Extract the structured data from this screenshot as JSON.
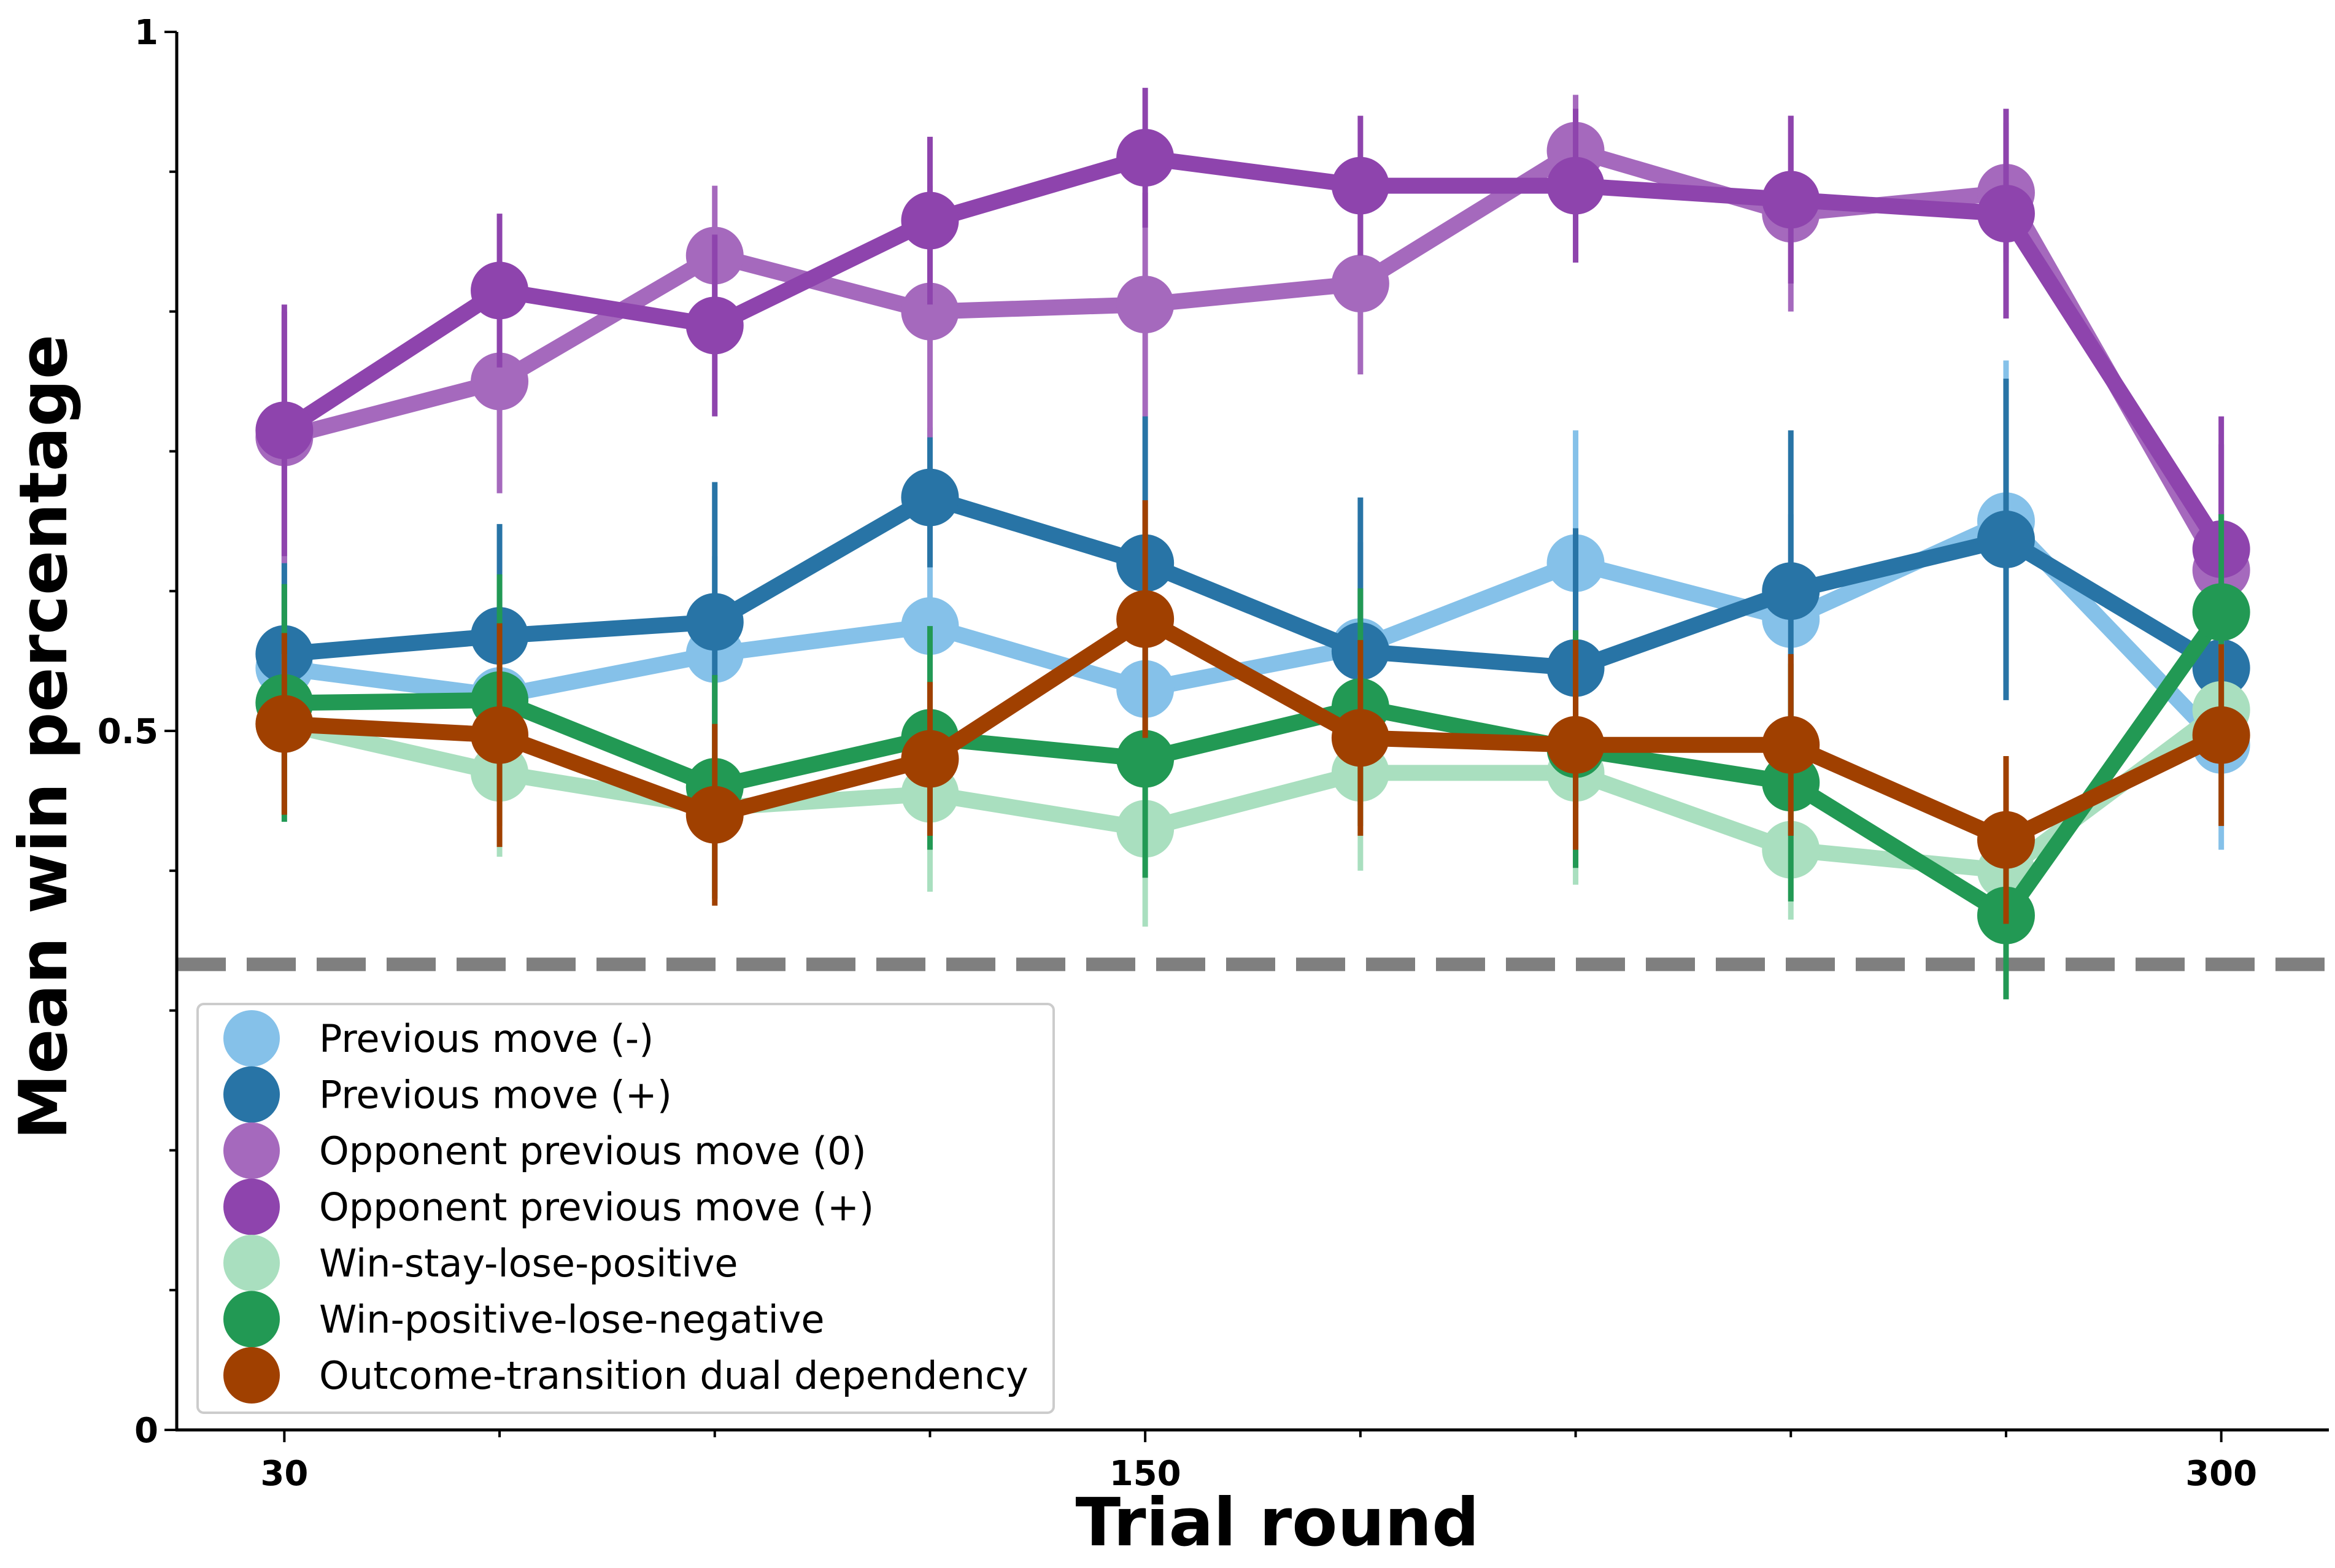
{
  "chart_data": {
    "type": "line",
    "title": "",
    "xlabel": "Trial round",
    "ylabel": "Mean win percentage",
    "x": [
      30,
      60,
      90,
      120,
      150,
      180,
      210,
      240,
      270,
      300
    ],
    "xticks": [
      30,
      60,
      90,
      120,
      150,
      180,
      210,
      240,
      270,
      300
    ],
    "xtick_labels": [
      "30",
      "",
      "",
      "",
      "150",
      "",
      "",
      "",
      "",
      "300"
    ],
    "xlim": [
      15,
      315
    ],
    "ylim": [
      0,
      1
    ],
    "yticks": [
      0,
      0.1,
      0.2,
      0.3,
      0.4,
      0.5,
      0.6,
      0.7,
      0.8,
      0.9,
      1
    ],
    "ytick_labels": [
      "0",
      "",
      "",
      "",
      "",
      "0.5",
      "",
      "",
      "",
      "",
      "1"
    ],
    "reference_line": {
      "y": 0.333,
      "style": "dashed",
      "color": "#7f7f7f"
    },
    "grid": false,
    "legend_position": "lower-left",
    "series": [
      {
        "name": "Previous move (-)",
        "color": "#85c1e9",
        "values": [
          0.545,
          0.525,
          0.555,
          0.575,
          0.53,
          0.56,
          0.62,
          0.58,
          0.65,
          0.49
        ],
        "errors": [
          0.075,
          0.07,
          0.07,
          0.075,
          0.07,
          0.075,
          0.095,
          0.075,
          0.115,
          0.075
        ]
      },
      {
        "name": "Previous move (+)",
        "color": "#2874a6",
        "values": [
          0.555,
          0.568,
          0.578,
          0.667,
          0.62,
          0.557,
          0.545,
          0.6,
          0.637,
          0.545
        ],
        "errors": [
          0.07,
          0.08,
          0.1,
          0.05,
          0.105,
          0.11,
          0.1,
          0.115,
          0.115,
          0.07
        ]
      },
      {
        "name": "Opponent previous move (0)",
        "color": "#a569bd",
        "values": [
          0.71,
          0.75,
          0.84,
          0.8,
          0.805,
          0.82,
          0.915,
          0.87,
          0.885,
          0.615
        ],
        "errors": [
          0.09,
          0.08,
          0.05,
          0.09,
          0.08,
          0.065,
          0.04,
          0.07,
          0.05,
          0.09
        ]
      },
      {
        "name": "Opponent previous move (+)",
        "color": "#8e44ad",
        "values": [
          0.715,
          0.815,
          0.79,
          0.865,
          0.91,
          0.89,
          0.89,
          0.88,
          0.87,
          0.63
        ],
        "errors": [
          0.09,
          0.055,
          0.065,
          0.06,
          0.05,
          0.05,
          0.055,
          0.06,
          0.075,
          0.095
        ]
      },
      {
        "name": "Win-stay-lose-positive",
        "color": "#a9dfbf",
        "values": [
          0.505,
          0.47,
          0.445,
          0.455,
          0.43,
          0.47,
          0.47,
          0.415,
          0.4,
          0.515
        ],
        "errors": [
          0.05,
          0.06,
          0.06,
          0.07,
          0.07,
          0.07,
          0.08,
          0.05,
          0.05,
          0.05
        ]
      },
      {
        "name": "Win-positive-lose-negative",
        "color": "#229954",
        "values": [
          0.52,
          0.522,
          0.46,
          0.495,
          0.48,
          0.517,
          0.487,
          0.463,
          0.368,
          0.585
        ],
        "errors": [
          0.085,
          0.09,
          0.08,
          0.08,
          0.085,
          0.085,
          0.085,
          0.085,
          0.06,
          0.07
        ]
      },
      {
        "name": "Outcome-transition dual dependency",
        "color": "#a04000",
        "values": [
          0.505,
          0.497,
          0.44,
          0.48,
          0.58,
          0.495,
          0.49,
          0.49,
          0.422,
          0.497
        ],
        "errors": [
          0.065,
          0.08,
          0.065,
          0.055,
          0.085,
          0.07,
          0.075,
          0.065,
          0.06,
          0.065
        ]
      }
    ]
  }
}
